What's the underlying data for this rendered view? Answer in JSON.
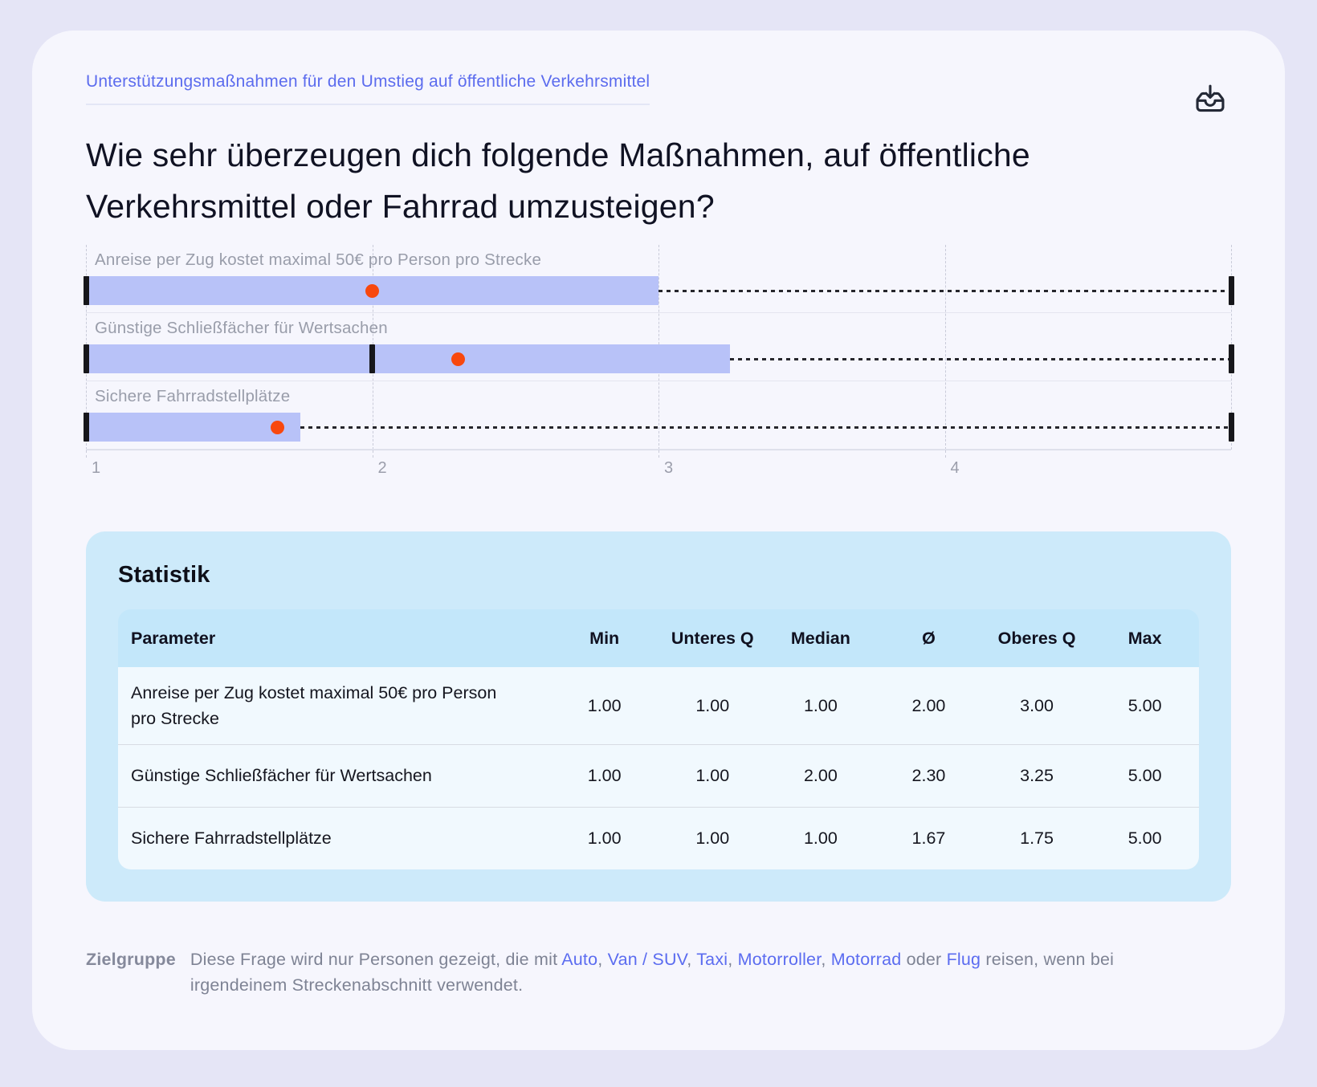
{
  "header": {
    "breadcrumb": "Unterstützungsmaßnahmen für den Umstieg auf öffentliche Verkehrsmittel",
    "title": "Wie sehr überzeugen dich folgende Maßnahmen, auf öffentliche Verkehrsmittel oder Fahrrad umzusteigen?",
    "download_icon": "download-icon"
  },
  "chart_data": {
    "type": "boxplot",
    "orientation": "horizontal",
    "axis": {
      "min": 1,
      "max": 5,
      "tick_labels": [
        "1",
        "2",
        "3",
        "4"
      ],
      "grid": "dashed-vertical"
    },
    "series": [
      {
        "label": "Anreise per Zug kostet maximal 50€ pro Person pro Strecke",
        "min": 1.0,
        "q1": 1.0,
        "median": 1.0,
        "mean": 2.0,
        "q3": 3.0,
        "max": 5.0
      },
      {
        "label": "Günstige Schließfächer für Wertsachen",
        "min": 1.0,
        "q1": 1.0,
        "median": 2.0,
        "mean": 2.3,
        "q3": 3.25,
        "max": 5.0
      },
      {
        "label": "Sichere Fahrradstellplätze",
        "min": 1.0,
        "q1": 1.0,
        "median": 1.0,
        "mean": 1.67,
        "q3": 1.75,
        "max": 5.0
      }
    ],
    "colors": {
      "box": "#b8c2f8",
      "mean_dot": "#f8480e",
      "minmax_marker": "#17171b",
      "accent_link": "#5b6cf0"
    }
  },
  "statistics": {
    "title": "Statistik",
    "columns": [
      "Parameter",
      "Min",
      "Unteres Q",
      "Median",
      "Ø",
      "Oberes Q",
      "Max"
    ],
    "rows": [
      {
        "parameter": "Anreise per Zug kostet maximal 50€ pro Person pro Strecke",
        "values": [
          "1.00",
          "1.00",
          "1.00",
          "2.00",
          "3.00",
          "5.00"
        ]
      },
      {
        "parameter": "Günstige Schließfächer für Wertsachen",
        "values": [
          "1.00",
          "1.00",
          "2.00",
          "2.30",
          "3.25",
          "5.00"
        ]
      },
      {
        "parameter": "Sichere Fahrradstellplätze",
        "values": [
          "1.00",
          "1.00",
          "1.00",
          "1.67",
          "1.75",
          "5.00"
        ]
      }
    ]
  },
  "target_group": {
    "label": "Zielgruppe",
    "segments": [
      {
        "text": "Diese Frage wird nur Personen gezeigt, die mit ",
        "link": false
      },
      {
        "text": "Auto",
        "link": true
      },
      {
        "text": ", ",
        "link": false
      },
      {
        "text": "Van / SUV",
        "link": true
      },
      {
        "text": ", ",
        "link": false
      },
      {
        "text": "Taxi",
        "link": true
      },
      {
        "text": ", ",
        "link": false
      },
      {
        "text": "Motorroller",
        "link": true
      },
      {
        "text": ", ",
        "link": false
      },
      {
        "text": "Motorrad",
        "link": true
      },
      {
        "text": " oder ",
        "link": false
      },
      {
        "text": "Flug",
        "link": true
      },
      {
        "text": " reisen, wenn bei irgendeinem Streckenabschnitt verwendet.",
        "link": false
      }
    ]
  }
}
